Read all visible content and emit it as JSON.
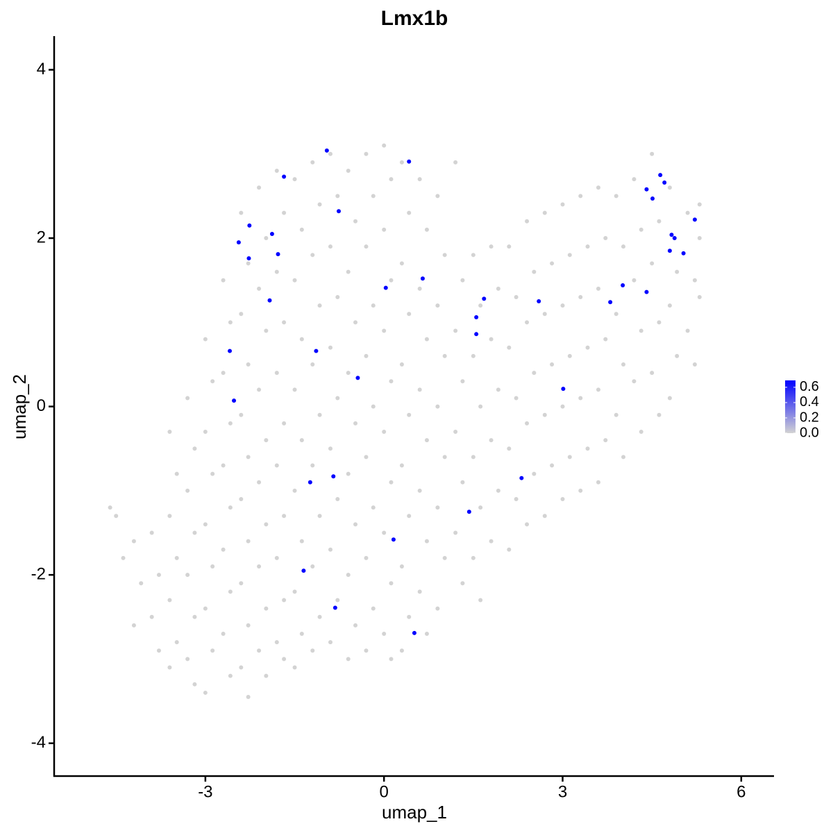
{
  "chart_data": {
    "type": "scatter",
    "title": "Lmx1b",
    "x_label": "umap_1",
    "y_label": "umap_2",
    "xlim": [
      -5.54,
      6.55
    ],
    "xticks": [
      -3,
      0,
      3,
      6
    ],
    "ylim": [
      -4.39,
      4.4
    ],
    "yticks": [
      -4,
      -2,
      0,
      2,
      4
    ],
    "colorbar": {
      "colors": [
        "#d3d3d3",
        "#0000ff"
      ],
      "lim": [
        0,
        0.69
      ],
      "ticks": [
        {
          "value": 0,
          "label": "0.0"
        },
        {
          "value": 0.2,
          "label": "0.2"
        },
        {
          "value": 0.4,
          "label": "0.4"
        },
        {
          "value": 0.6,
          "label": "0.6"
        }
      ]
    },
    "series": [
      {
        "color": "#d3d3d3",
        "x": [
          -4.6,
          -4.5,
          -4.38,
          -4.2,
          -4.08,
          -4.2,
          -3.9,
          -3.78,
          -3.9,
          -3.78,
          -3.6,
          -3.48,
          -3.6,
          -3.48,
          -3.6,
          -3.48,
          -3.6,
          -3.3,
          -3.18,
          -3.3,
          -3.18,
          -3.3,
          -3.18,
          -3.3,
          -3.18,
          -3.0,
          -2.88,
          -3.0,
          -2.88,
          -3.0,
          -2.88,
          -3.0,
          -2.88,
          -3.0,
          -2.7,
          -2.58,
          -2.7,
          -2.58,
          -2.7,
          -2.58,
          -2.7,
          -2.58,
          -2.7,
          -2.58,
          -2.4,
          -2.28,
          -2.4,
          -2.28,
          -2.4,
          -2.28,
          -2.4,
          -2.28,
          -2.4,
          -2.28,
          -2.4,
          -2.28,
          -2.1,
          -1.98,
          -2.1,
          -1.98,
          -2.1,
          -1.98,
          -2.1,
          -1.98,
          -2.1,
          -1.98,
          -2.1,
          -1.98,
          -1.8,
          -1.68,
          -1.8,
          -1.68,
          -1.8,
          -1.68,
          -1.8,
          -1.68,
          -1.8,
          -1.68,
          -1.8,
          -1.68,
          -1.5,
          -1.38,
          -1.5,
          -1.38,
          -1.5,
          -1.38,
          -1.5,
          -1.38,
          -1.5,
          -1.38,
          -1.5,
          -1.2,
          -1.08,
          -1.2,
          -1.08,
          -1.2,
          -1.08,
          -1.2,
          -1.08,
          -1.2,
          -1.08,
          -1.2,
          -0.9,
          -0.78,
          -0.9,
          -0.78,
          -0.9,
          -0.78,
          -0.9,
          -0.78,
          -0.9,
          -0.78,
          -0.9,
          -0.6,
          -0.48,
          -0.6,
          -0.48,
          -0.6,
          -0.48,
          -0.6,
          -0.48,
          -0.6,
          -0.48,
          -0.6,
          -0.3,
          -0.18,
          -0.3,
          -0.18,
          -0.3,
          -0.18,
          -0.3,
          -0.18,
          -0.3,
          -0.18,
          -0.3,
          0.0,
          0.12,
          0.0,
          0.12,
          0.0,
          0.12,
          0.0,
          0.12,
          0.0,
          0.12,
          0.0,
          0.12,
          0.3,
          0.42,
          0.3,
          0.42,
          0.3,
          0.42,
          0.3,
          0.42,
          0.3,
          0.42,
          0.3,
          0.6,
          0.72,
          0.6,
          0.72,
          0.6,
          0.72,
          0.6,
          0.72,
          0.6,
          0.72,
          0.9,
          1.02,
          0.9,
          1.02,
          0.9,
          1.02,
          0.9,
          1.02,
          0.9,
          1.2,
          1.32,
          1.2,
          1.32,
          1.2,
          1.32,
          1.2,
          1.32,
          1.5,
          1.62,
          1.5,
          1.62,
          1.5,
          1.62,
          1.5,
          1.62,
          1.8,
          1.92,
          1.8,
          1.92,
          1.8,
          1.92,
          1.8,
          2.1,
          2.22,
          2.1,
          2.22,
          2.1,
          2.22,
          2.1,
          2.4,
          2.52,
          2.4,
          2.52,
          2.4,
          2.52,
          2.4,
          2.7,
          2.82,
          2.7,
          2.82,
          2.7,
          2.82,
          2.7,
          3.0,
          3.12,
          3.0,
          3.12,
          3.0,
          3.12,
          3.0,
          3.3,
          3.42,
          3.3,
          3.42,
          3.3,
          3.42,
          3.3,
          3.6,
          3.72,
          3.6,
          3.72,
          3.6,
          3.72,
          3.6,
          3.9,
          4.02,
          3.9,
          4.02,
          3.9,
          4.02,
          4.2,
          4.32,
          4.2,
          4.32,
          4.2,
          4.32,
          4.5,
          4.62,
          4.5,
          4.62,
          4.5,
          4.62,
          4.8,
          4.92,
          4.8,
          4.92,
          4.8,
          5.1,
          5.22,
          5.1,
          5.22,
          5.3,
          5.3,
          5.3
        ],
        "values": [
          -1.2,
          -1.3,
          -1.8,
          -1.6,
          -2.1,
          -2.6,
          -1.5,
          -2.0,
          -2.5,
          -2.9,
          -0.3,
          -0.8,
          -1.3,
          -1.8,
          -2.3,
          -2.8,
          -3.1,
          0.1,
          -0.5,
          -1.0,
          -1.5,
          -2.0,
          -2.5,
          -3.0,
          -3.3,
          0.8,
          0.3,
          -0.3,
          -0.8,
          -1.4,
          -1.9,
          -2.4,
          -2.9,
          -3.4,
          1.5,
          1.0,
          0.4,
          -0.2,
          -0.7,
          -1.2,
          -1.7,
          -2.2,
          -2.7,
          -3.2,
          2.3,
          1.7,
          1.1,
          0.5,
          -0.1,
          -0.6,
          -1.1,
          -1.6,
          -2.1,
          -2.6,
          -3.1,
          -3.45,
          2.6,
          2.0,
          1.4,
          0.9,
          0.2,
          -0.4,
          -0.9,
          -1.4,
          -1.9,
          -2.4,
          -2.9,
          -3.2,
          2.8,
          2.3,
          1.6,
          1.0,
          0.4,
          -0.2,
          -0.7,
          -1.3,
          -1.8,
          -2.3,
          -2.8,
          -3.0,
          2.7,
          2.1,
          1.5,
          0.8,
          0.2,
          -0.4,
          -1.0,
          -1.6,
          -2.2,
          -2.7,
          -3.1,
          2.9,
          2.4,
          1.8,
          1.2,
          0.5,
          -0.1,
          -0.7,
          -1.3,
          -1.9,
          -2.5,
          -2.9,
          3.0,
          2.5,
          1.9,
          1.3,
          0.7,
          0.1,
          -0.5,
          -1.1,
          -1.7,
          -2.3,
          -2.8,
          2.8,
          2.2,
          1.6,
          1.0,
          0.4,
          -0.2,
          -0.8,
          -1.4,
          -2.0,
          -2.6,
          -3.0,
          3.0,
          2.5,
          1.9,
          1.2,
          0.6,
          0.0,
          -0.6,
          -1.2,
          -1.8,
          -2.4,
          -2.9,
          3.1,
          2.7,
          2.1,
          1.5,
          0.9,
          0.3,
          -0.3,
          -0.9,
          -1.5,
          -2.1,
          -2.7,
          -3.0,
          2.9,
          2.3,
          1.7,
          1.1,
          0.5,
          -0.1,
          -0.7,
          -1.3,
          -1.9,
          -2.5,
          -2.9,
          2.7,
          2.1,
          1.4,
          0.8,
          0.2,
          -0.4,
          -1.0,
          -1.6,
          -2.2,
          -2.7,
          2.5,
          1.8,
          1.2,
          0.6,
          0.0,
          -0.6,
          -1.2,
          -1.8,
          -2.4,
          2.9,
          1.5,
          0.9,
          0.3,
          -0.3,
          -0.9,
          -1.5,
          -2.1,
          1.8,
          1.2,
          0.6,
          0.0,
          -0.6,
          -1.2,
          -1.8,
          -2.3,
          1.9,
          1.4,
          0.8,
          0.2,
          -0.4,
          -1.0,
          -1.6,
          1.9,
          1.3,
          0.7,
          0.1,
          -0.5,
          -1.1,
          -1.7,
          2.2,
          1.6,
          1.0,
          0.4,
          -0.2,
          -0.8,
          -1.4,
          2.3,
          1.7,
          1.1,
          0.5,
          -0.1,
          -0.7,
          -1.3,
          2.4,
          1.8,
          1.2,
          0.6,
          0.0,
          -0.6,
          -1.1,
          2.5,
          1.9,
          1.3,
          0.7,
          0.1,
          -0.5,
          -1.0,
          2.6,
          2.0,
          1.4,
          0.8,
          0.2,
          -0.4,
          -0.9,
          2.5,
          1.9,
          1.1,
          0.5,
          -0.1,
          -0.6,
          2.7,
          2.1,
          1.5,
          0.9,
          0.3,
          -0.3,
          3.0,
          2.2,
          1.7,
          1.0,
          0.4,
          -0.1,
          2.6,
          1.6,
          1.2,
          0.6,
          0.1,
          2.3,
          1.5,
          0.9,
          0.5,
          2.4,
          2.0,
          1.3
        ]
      },
      {
        "color": "#0000ff",
        "x": [
          -0.96,
          0.42,
          -1.68,
          -0.76,
          -2.26,
          -2.44,
          -1.88,
          -2.27,
          -1.78,
          -1.92,
          0.03,
          0.65,
          1.68,
          1.55,
          1.55,
          2.6,
          -2.59,
          -1.14,
          -0.44,
          -2.52,
          3.01,
          -1.24,
          -0.85,
          2.31,
          1.43,
          0.16,
          -1.35,
          -0.82,
          0.51,
          3.8,
          4.01,
          4.41,
          4.41,
          4.64,
          4.71,
          4.51,
          4.83,
          4.88,
          4.8,
          5.03,
          5.22
        ],
        "values": [
          3.04,
          2.91,
          2.73,
          2.32,
          2.15,
          1.95,
          2.05,
          1.76,
          1.81,
          1.26,
          1.41,
          1.52,
          1.28,
          1.06,
          0.86,
          1.25,
          0.66,
          0.66,
          0.34,
          0.07,
          0.21,
          -0.9,
          -0.83,
          -0.85,
          -1.25,
          -1.58,
          -1.95,
          -2.39,
          -2.69,
          1.24,
          1.44,
          1.36,
          2.58,
          2.75,
          2.66,
          2.47,
          2.04,
          2.0,
          1.85,
          1.82,
          2.22
        ]
      }
    ]
  }
}
